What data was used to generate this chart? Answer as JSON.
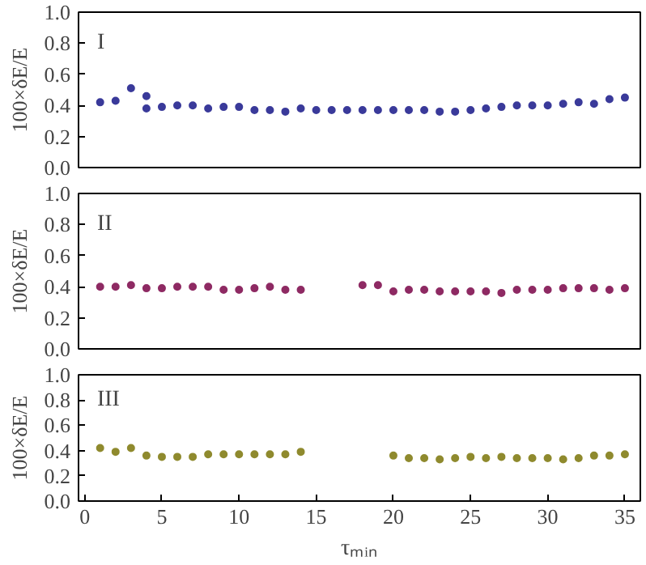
{
  "chart_data": [
    {
      "type": "scatter",
      "ylabel": "100×δE/E",
      "annotations": [
        "I"
      ],
      "tick_labels": "y",
      "marker": "circle",
      "grid": false,
      "xlim": [
        -0.4,
        36
      ],
      "ylim": [
        0,
        1
      ],
      "yticks": [
        {
          "value": 0,
          "label": "0.0"
        },
        {
          "value": 0.2,
          "label": "0.2"
        },
        {
          "value": 0.4,
          "label": "0.4"
        },
        {
          "value": 0.6,
          "label": "0.6"
        },
        {
          "value": 0.8,
          "label": "0.8"
        },
        {
          "value": 1,
          "label": "1.0"
        }
      ],
      "x": [
        1,
        2,
        3,
        4,
        4,
        5,
        6,
        7,
        8,
        9,
        10,
        11,
        12,
        13,
        14,
        15,
        16,
        17,
        18,
        19,
        20,
        21,
        22,
        23,
        24,
        25,
        26,
        27,
        28,
        29,
        30,
        31,
        32,
        33,
        34,
        35
      ],
      "series": [
        {
          "color": "#3a3a9a",
          "values": [
            0.42,
            0.43,
            0.51,
            0.46,
            0.38,
            0.39,
            0.4,
            0.4,
            0.38,
            0.39,
            0.39,
            0.37,
            0.37,
            0.36,
            0.38,
            0.37,
            0.37,
            0.37,
            0.37,
            0.37,
            0.37,
            0.37,
            0.37,
            0.36,
            0.36,
            0.37,
            0.38,
            0.39,
            0.4,
            0.4,
            0.4,
            0.41,
            0.42,
            0.41,
            0.44,
            0.45
          ]
        }
      ]
    },
    {
      "type": "scatter",
      "ylabel": "100×δE/E",
      "annotations": [
        "II"
      ],
      "tick_labels": "y",
      "marker": "circle",
      "grid": false,
      "xlim": [
        -0.4,
        36
      ],
      "ylim": [
        0,
        1
      ],
      "yticks": [
        {
          "value": 0,
          "label": "0.0"
        },
        {
          "value": 0.2,
          "label": "0.2"
        },
        {
          "value": 0.4,
          "label": "0.4"
        },
        {
          "value": 0.6,
          "label": "0.6"
        },
        {
          "value": 0.8,
          "label": "0.8"
        },
        {
          "value": 1,
          "label": "1.0"
        }
      ],
      "x": [
        1,
        2,
        3,
        4,
        5,
        6,
        7,
        8,
        9,
        10,
        11,
        12,
        13,
        14,
        18,
        19,
        20,
        21,
        22,
        23,
        24,
        25,
        26,
        27,
        28,
        29,
        30,
        31,
        32,
        33,
        34,
        35
      ],
      "series": [
        {
          "color": "#8e2a63",
          "values": [
            0.4,
            0.4,
            0.41,
            0.39,
            0.39,
            0.4,
            0.4,
            0.4,
            0.38,
            0.38,
            0.39,
            0.4,
            0.38,
            0.38,
            0.41,
            0.41,
            0.37,
            0.38,
            0.38,
            0.37,
            0.37,
            0.37,
            0.37,
            0.36,
            0.38,
            0.38,
            0.38,
            0.39,
            0.39,
            0.39,
            0.38,
            0.39
          ]
        }
      ]
    },
    {
      "type": "scatter",
      "ylabel": "100×δE/E",
      "xlabel": "τₘᵢₙ",
      "annotations": [
        "III"
      ],
      "marker": "circle",
      "grid": false,
      "xlim": [
        -0.4,
        36
      ],
      "ylim": [
        0,
        1
      ],
      "xticks": [
        0,
        5,
        10,
        15,
        20,
        25,
        30,
        35
      ],
      "yticks": [
        {
          "value": 0,
          "label": "0.0"
        },
        {
          "value": 0.2,
          "label": "0.2"
        },
        {
          "value": 0.4,
          "label": "0.4"
        },
        {
          "value": 0.6,
          "label": "0.6"
        },
        {
          "value": 0.8,
          "label": "0.8"
        },
        {
          "value": 1,
          "label": "1.0"
        }
      ],
      "x": [
        1,
        2,
        3,
        4,
        5,
        6,
        7,
        8,
        9,
        10,
        11,
        12,
        13,
        14,
        20,
        21,
        22,
        23,
        24,
        25,
        26,
        27,
        28,
        29,
        30,
        31,
        32,
        33,
        34,
        35
      ],
      "series": [
        {
          "color": "#8f8a2e",
          "values": [
            0.42,
            0.39,
            0.42,
            0.36,
            0.35,
            0.35,
            0.35,
            0.37,
            0.37,
            0.37,
            0.37,
            0.37,
            0.37,
            0.39,
            0.36,
            0.34,
            0.34,
            0.33,
            0.34,
            0.35,
            0.34,
            0.35,
            0.34,
            0.34,
            0.34,
            0.33,
            0.34,
            0.36,
            0.36,
            0.37
          ]
        }
      ]
    }
  ]
}
